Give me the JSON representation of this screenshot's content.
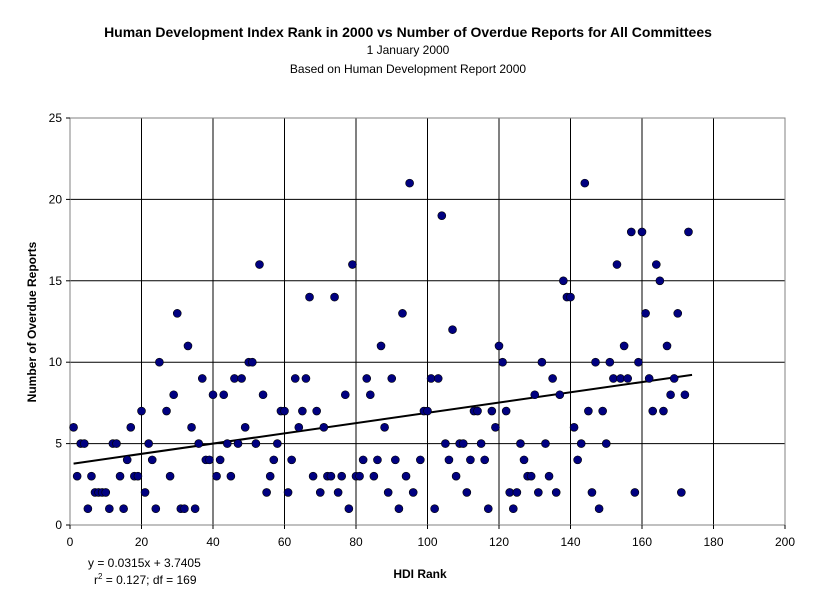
{
  "chart_data": {
    "type": "scatter",
    "title": "Human Development Index Rank in 2000 vs Number of  Overdue Reports for All Committees",
    "subtitle": "1 January 2000",
    "subtitle2": "Based on Human Development Report 2000",
    "xlabel": "HDI Rank",
    "ylabel": "Number of Overdue Reports",
    "xlim": [
      0,
      200
    ],
    "ylim": [
      0,
      25
    ],
    "xticks": [
      0,
      20,
      40,
      60,
      80,
      100,
      120,
      140,
      160,
      180,
      200
    ],
    "yticks": [
      0,
      5,
      10,
      15,
      20,
      25
    ],
    "grid": true,
    "marker_color": "#000080",
    "trendline": {
      "slope": 0.0315,
      "intercept": 3.7405,
      "x_range": [
        1,
        174
      ]
    },
    "annotations": {
      "equation": "y = 0.0315x + 3.7405",
      "r2_prefix": "r",
      "r2_exp": "2",
      "r2_rest": " = 0.127; df = 169"
    },
    "points": [
      [
        1,
        6
      ],
      [
        2,
        3
      ],
      [
        3,
        5
      ],
      [
        4,
        5
      ],
      [
        5,
        1
      ],
      [
        6,
        3
      ],
      [
        7,
        2
      ],
      [
        8,
        2
      ],
      [
        9,
        2
      ],
      [
        10,
        2
      ],
      [
        11,
        1
      ],
      [
        12,
        5
      ],
      [
        13,
        5
      ],
      [
        14,
        3
      ],
      [
        15,
        1
      ],
      [
        16,
        4
      ],
      [
        17,
        6
      ],
      [
        18,
        3
      ],
      [
        19,
        3
      ],
      [
        20,
        7
      ],
      [
        21,
        2
      ],
      [
        22,
        5
      ],
      [
        23,
        4
      ],
      [
        24,
        1
      ],
      [
        25,
        10
      ],
      [
        27,
        7
      ],
      [
        28,
        3
      ],
      [
        29,
        8
      ],
      [
        30,
        13
      ],
      [
        31,
        1
      ],
      [
        32,
        1
      ],
      [
        33,
        11
      ],
      [
        34,
        6
      ],
      [
        35,
        1
      ],
      [
        36,
        5
      ],
      [
        37,
        9
      ],
      [
        38,
        4
      ],
      [
        39,
        4
      ],
      [
        40,
        8
      ],
      [
        41,
        3
      ],
      [
        42,
        4
      ],
      [
        43,
        8
      ],
      [
        44,
        5
      ],
      [
        45,
        3
      ],
      [
        46,
        9
      ],
      [
        47,
        5
      ],
      [
        48,
        9
      ],
      [
        49,
        6
      ],
      [
        50,
        10
      ],
      [
        51,
        10
      ],
      [
        52,
        5
      ],
      [
        53,
        16
      ],
      [
        54,
        8
      ],
      [
        55,
        2
      ],
      [
        56,
        3
      ],
      [
        57,
        4
      ],
      [
        58,
        5
      ],
      [
        59,
        7
      ],
      [
        60,
        7
      ],
      [
        61,
        2
      ],
      [
        62,
        4
      ],
      [
        63,
        9
      ],
      [
        64,
        6
      ],
      [
        65,
        7
      ],
      [
        66,
        9
      ],
      [
        67,
        14
      ],
      [
        68,
        3
      ],
      [
        69,
        7
      ],
      [
        70,
        2
      ],
      [
        71,
        6
      ],
      [
        72,
        3
      ],
      [
        73,
        3
      ],
      [
        74,
        14
      ],
      [
        75,
        2
      ],
      [
        76,
        3
      ],
      [
        77,
        8
      ],
      [
        78,
        1
      ],
      [
        79,
        16
      ],
      [
        80,
        3
      ],
      [
        81,
        3
      ],
      [
        82,
        4
      ],
      [
        83,
        9
      ],
      [
        84,
        8
      ],
      [
        85,
        3
      ],
      [
        86,
        4
      ],
      [
        87,
        11
      ],
      [
        88,
        6
      ],
      [
        89,
        2
      ],
      [
        90,
        9
      ],
      [
        91,
        4
      ],
      [
        92,
        1
      ],
      [
        93,
        13
      ],
      [
        94,
        3
      ],
      [
        95,
        21
      ],
      [
        96,
        2
      ],
      [
        98,
        4
      ],
      [
        99,
        7
      ],
      [
        100,
        7
      ],
      [
        101,
        9
      ],
      [
        102,
        1
      ],
      [
        103,
        9
      ],
      [
        104,
        19
      ],
      [
        105,
        5
      ],
      [
        106,
        4
      ],
      [
        107,
        12
      ],
      [
        108,
        3
      ],
      [
        109,
        5
      ],
      [
        110,
        5
      ],
      [
        111,
        2
      ],
      [
        112,
        4
      ],
      [
        113,
        7
      ],
      [
        114,
        7
      ],
      [
        115,
        5
      ],
      [
        116,
        4
      ],
      [
        117,
        1
      ],
      [
        118,
        7
      ],
      [
        119,
        6
      ],
      [
        120,
        11
      ],
      [
        121,
        10
      ],
      [
        122,
        7
      ],
      [
        123,
        2
      ],
      [
        124,
        1
      ],
      [
        125,
        2
      ],
      [
        126,
        5
      ],
      [
        127,
        4
      ],
      [
        128,
        3
      ],
      [
        129,
        3
      ],
      [
        130,
        8
      ],
      [
        131,
        2
      ],
      [
        132,
        10
      ],
      [
        133,
        5
      ],
      [
        134,
        3
      ],
      [
        135,
        9
      ],
      [
        136,
        2
      ],
      [
        137,
        8
      ],
      [
        138,
        15
      ],
      [
        139,
        14
      ],
      [
        140,
        14
      ],
      [
        141,
        6
      ],
      [
        142,
        4
      ],
      [
        143,
        5
      ],
      [
        144,
        21
      ],
      [
        145,
        7
      ],
      [
        146,
        2
      ],
      [
        147,
        10
      ],
      [
        148,
        1
      ],
      [
        149,
        7
      ],
      [
        150,
        5
      ],
      [
        151,
        10
      ],
      [
        152,
        9
      ],
      [
        153,
        16
      ],
      [
        154,
        9
      ],
      [
        155,
        11
      ],
      [
        156,
        9
      ],
      [
        157,
        18
      ],
      [
        158,
        2
      ],
      [
        159,
        10
      ],
      [
        160,
        18
      ],
      [
        161,
        13
      ],
      [
        162,
        9
      ],
      [
        163,
        7
      ],
      [
        164,
        16
      ],
      [
        165,
        15
      ],
      [
        166,
        7
      ],
      [
        167,
        11
      ],
      [
        168,
        8
      ],
      [
        169,
        9
      ],
      [
        170,
        13
      ],
      [
        171,
        2
      ],
      [
        172,
        8
      ],
      [
        173,
        18
      ]
    ]
  }
}
